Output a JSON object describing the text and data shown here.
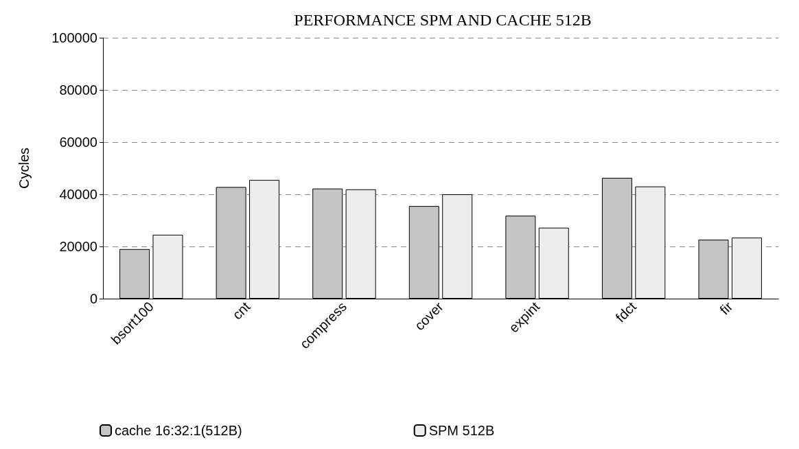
{
  "chart_data": {
    "type": "bar",
    "title": "PERFORMANCE SPM AND CACHE 512B",
    "ylabel": "Cycles",
    "categories": [
      "bsort100",
      "cnt",
      "compress",
      "cover",
      "expint",
      "fdct",
      "fir"
    ],
    "series": [
      {
        "name": "cache 16:32:1(512B)",
        "color": "#c4c4c4",
        "values": [
          19000,
          42800,
          42200,
          35500,
          31800,
          46300,
          22600
        ]
      },
      {
        "name": "SPM 512B",
        "color": "#ececec",
        "values": [
          24500,
          45500,
          41900,
          40000,
          27200,
          43000,
          23400
        ]
      }
    ],
    "ylim": [
      0,
      100000
    ],
    "yticks": [
      0,
      20000,
      40000,
      60000,
      80000,
      100000
    ],
    "grid": "y",
    "legend": "bottom"
  }
}
